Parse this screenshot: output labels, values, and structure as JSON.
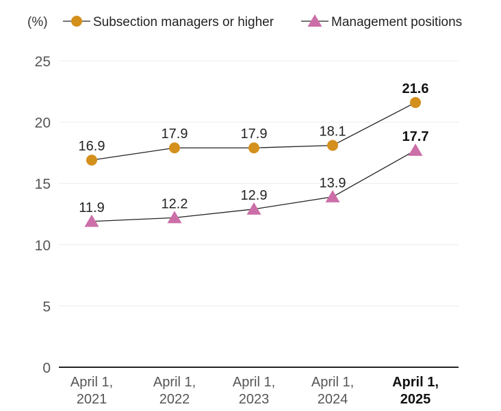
{
  "chart_data": {
    "type": "line",
    "ylabel": "(%)",
    "ylim": [
      0,
      25
    ],
    "yticks": [
      0,
      5,
      10,
      15,
      20,
      25
    ],
    "grid": true,
    "legend_position": "top",
    "categories": [
      [
        "April 1,",
        "2021"
      ],
      [
        "April 1,",
        "2022"
      ],
      [
        "April 1,",
        "2023"
      ],
      [
        "April 1,",
        "2024"
      ],
      [
        "April 1,",
        "2025"
      ]
    ],
    "highlight_last": true,
    "series": [
      {
        "name": "Subsection managers or higher",
        "marker": "circle",
        "color": "#d4901c",
        "values": [
          16.9,
          17.9,
          17.9,
          18.1,
          21.6
        ],
        "labels": [
          "16.9",
          "17.9",
          "17.9",
          "18.1",
          "21.6"
        ]
      },
      {
        "name": "Management positions",
        "marker": "triangle",
        "color": "#cc6fa8",
        "values": [
          11.9,
          12.2,
          12.9,
          13.9,
          17.7
        ],
        "labels": [
          "11.9",
          "12.2",
          "12.9",
          "13.9",
          "17.7"
        ]
      }
    ]
  }
}
